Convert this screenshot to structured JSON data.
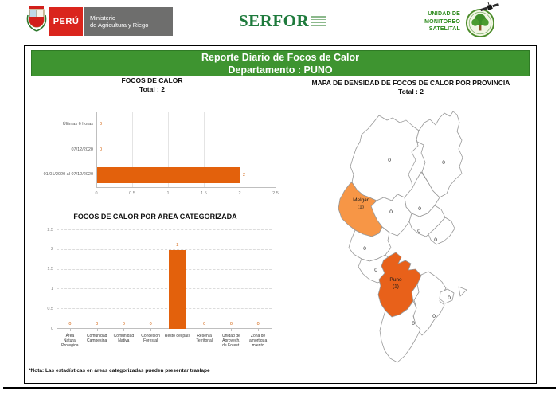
{
  "header": {
    "peru_label": "PERÚ",
    "ministry_line1": "Ministerio",
    "ministry_line2": "de Agricultura y Riego",
    "serfor_logo": "SERFOR",
    "unit_lines": [
      "UNIDAD DE",
      "MONITOREO",
      "SATELITAL"
    ]
  },
  "title_bar": {
    "line1": "Reporte Diario de Focos de Calor",
    "line2": "Departamento : PUNO"
  },
  "chart_data": [
    {
      "type": "bar",
      "orientation": "horizontal",
      "title": "FOCOS DE CALOR",
      "subtitle": "Total : 2",
      "categories": [
        "Últimas 6 horas",
        "07/12/2020",
        "01/01/2020 al 07/12/2020"
      ],
      "values": [
        0,
        0,
        2
      ],
      "xlabel": "",
      "ylabel": "",
      "xlim": [
        0,
        2.5
      ],
      "xticks": [
        "0",
        "0.5",
        "1",
        "1.5",
        "2",
        "2.5"
      ],
      "grid": true,
      "legend": "none",
      "bar_color": "#E3610C",
      "value_label_color": "#D2600A"
    },
    {
      "type": "bar",
      "orientation": "vertical",
      "title": "FOCOS DE CALOR POR AREA CATEGORIZADA",
      "categories": [
        [
          "Área",
          "Natural",
          "Protegida"
        ],
        [
          "Comunidad",
          "Campesina"
        ],
        [
          "Comunidad",
          "Nativa"
        ],
        [
          "Concesión",
          "Forestal"
        ],
        [
          "Resto del país"
        ],
        [
          "Reserva",
          "Territorial"
        ],
        [
          "Unidad de",
          "Aprovech.",
          "de Forest."
        ],
        [
          "Zona de",
          "amortigua",
          "miento"
        ]
      ],
      "values": [
        0,
        0,
        0,
        0,
        2,
        0,
        0,
        0
      ],
      "xlabel": "",
      "ylabel": "",
      "ylim": [
        0,
        2.5
      ],
      "yticks": [
        "0",
        "0.5",
        "1",
        "1.5",
        "2",
        "2.5"
      ],
      "grid": true,
      "legend": "none",
      "bar_color": "#E3610C",
      "value_label_color": "#D2600A"
    }
  ],
  "map": {
    "title": "MAPA DE DENSIDAD DE FOCOS DE CALOR POR PROVINCIA",
    "subtitle": "Total : 2",
    "default_fill": "#FFFFFF",
    "border_color": "#999999",
    "provinces": [
      {
        "id": "carabaya",
        "value": 0,
        "label_lines": [
          "0"
        ]
      },
      {
        "id": "sandia",
        "value": 0,
        "label_lines": [
          "0"
        ]
      },
      {
        "id": "putina",
        "value": 0,
        "label_lines": [
          "0"
        ]
      },
      {
        "id": "azangaro",
        "value": 0,
        "label_lines": [
          "0"
        ]
      },
      {
        "id": "melgar",
        "value": 1,
        "fill": "#F79646",
        "label_lines": [
          "Melgar",
          "(1)"
        ]
      },
      {
        "id": "huancane",
        "value": 0,
        "label_lines": [
          "0"
        ]
      },
      {
        "id": "moho",
        "value": 0,
        "label_lines": [
          "0"
        ]
      },
      {
        "id": "lampa",
        "value": 0,
        "label_lines": [
          "0"
        ]
      },
      {
        "id": "san_roman",
        "value": 0,
        "label_lines": [
          "0"
        ]
      },
      {
        "id": "chucuito",
        "value": 0,
        "label_lines": [
          "0"
        ]
      },
      {
        "id": "puno",
        "value": 1,
        "fill": "#E8611A",
        "label_lines": [
          "Puno",
          "(1)"
        ]
      },
      {
        "id": "el_collao",
        "value": 0,
        "label_lines": [
          "0"
        ]
      },
      {
        "id": "yunguyo",
        "value": 0,
        "label_lines": [
          "0"
        ]
      }
    ]
  },
  "footnote": "*Nota: Las estadísticas en áreas categorizadas pueden presentar traslape"
}
